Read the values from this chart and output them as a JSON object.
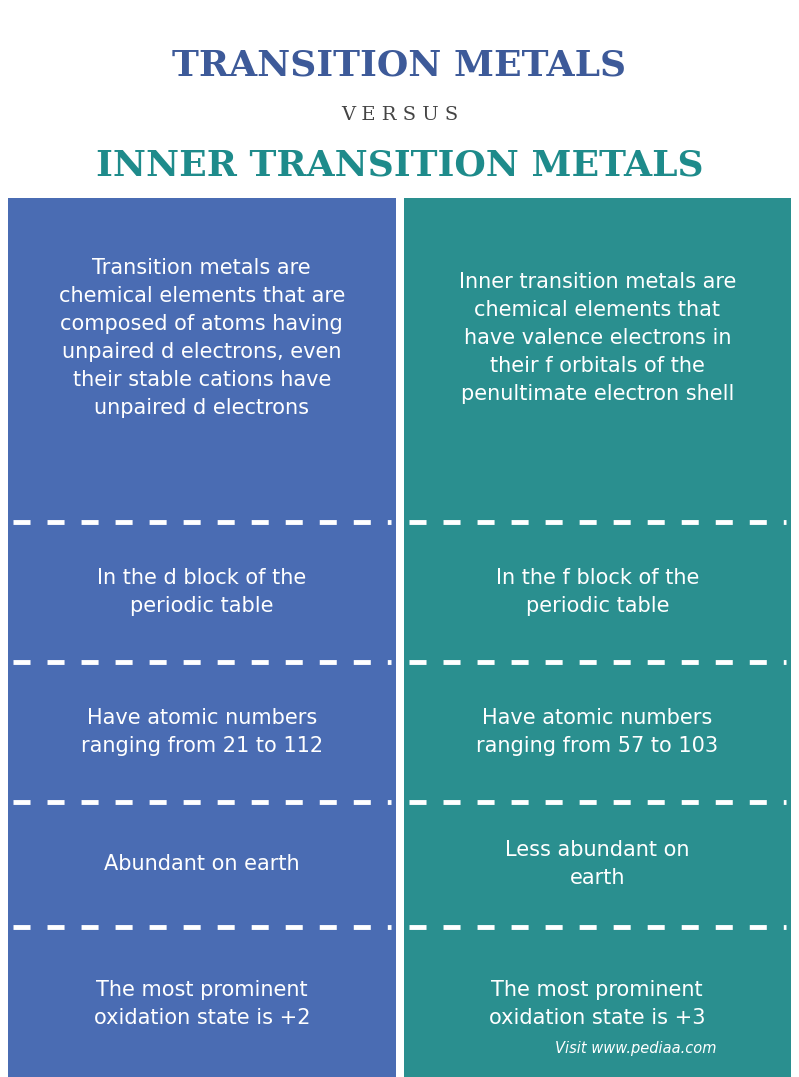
{
  "title1": "TRANSITION METALS",
  "versus": "V E R S U S",
  "title2": "INNER TRANSITION METALS",
  "title1_color": "#3d5a99",
  "title2_color": "#1e8b8b",
  "versus_color": "#444444",
  "left_bg": "#4a6cb3",
  "right_bg": "#2a8f8f",
  "white_bg": "#ffffff",
  "text_color": "#ffffff",
  "left_texts": [
    "Transition metals are\nchemical elements that are\ncomposed of atoms having\nunpaired d electrons, even\ntheir stable cations have\nunpaired d electrons",
    "In the d block of the\nperiodic table",
    "Have atomic numbers\nranging from 21 to 112",
    "Abundant on earth",
    "The most prominent\noxidation state is +2"
  ],
  "right_texts": [
    "Inner transition metals are\nchemical elements that\nhave valence electrons in\ntheir f orbitals of the\npenultimate electron shell",
    "In the f block of the\nperiodic table",
    "Have atomic numbers\nranging from 57 to 103",
    "Less abundant on\nearth",
    "The most prominent\noxidation state is +3"
  ],
  "watermark": "Visit www.pediaa.com",
  "fig_width": 7.99,
  "fig_height": 10.77,
  "dpi": 100
}
